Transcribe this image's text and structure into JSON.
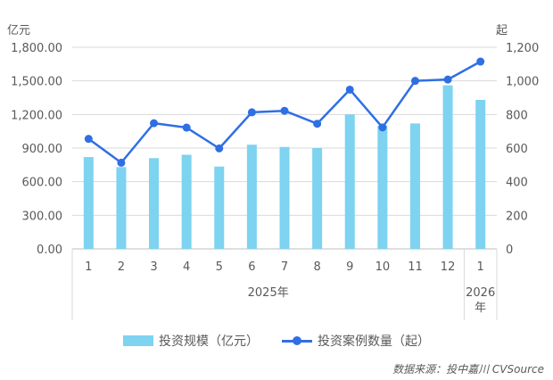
{
  "units": {
    "left": "亿元",
    "right": "起"
  },
  "legend": {
    "bar": "投资规模（亿元）",
    "line": "投资案例数量（起）"
  },
  "source": "数据来源：投中嘉川 CVSource",
  "colors": {
    "bar": "#7dd3f0",
    "line": "#2f6fe4",
    "grid": "#d9d9d9",
    "text": "#595959"
  },
  "chart_data": {
    "type": "bar+line",
    "categories": [
      "1",
      "2",
      "3",
      "4",
      "5",
      "6",
      "7",
      "8",
      "9",
      "10",
      "11",
      "12",
      "1"
    ],
    "year_groups": [
      {
        "label": "2025年",
        "span": 12
      },
      {
        "label": "2026年",
        "span": 1
      }
    ],
    "series": [
      {
        "name": "投资规模（亿元）",
        "type": "bar",
        "axis": "left",
        "values": [
          820,
          730,
          810,
          840,
          735,
          930,
          910,
          900,
          1200,
          1100,
          1120,
          1460,
          1330
        ]
      },
      {
        "name": "投资案例数量（起）",
        "type": "line",
        "axis": "right",
        "values": [
          655,
          513,
          748,
          722,
          598,
          813,
          822,
          745,
          948,
          723,
          1000,
          1008,
          1115
        ]
      }
    ],
    "left_axis": {
      "ylim": [
        0,
        1800
      ],
      "ticks": [
        "0.00",
        "300.00",
        "600.00",
        "900.00",
        "1,200.00",
        "1,500.00",
        "1,800.00"
      ]
    },
    "right_axis": {
      "ylim": [
        0,
        1200
      ],
      "ticks": [
        "0",
        "200",
        "400",
        "600",
        "800",
        "1,000",
        "1,200"
      ]
    },
    "grid": true
  }
}
